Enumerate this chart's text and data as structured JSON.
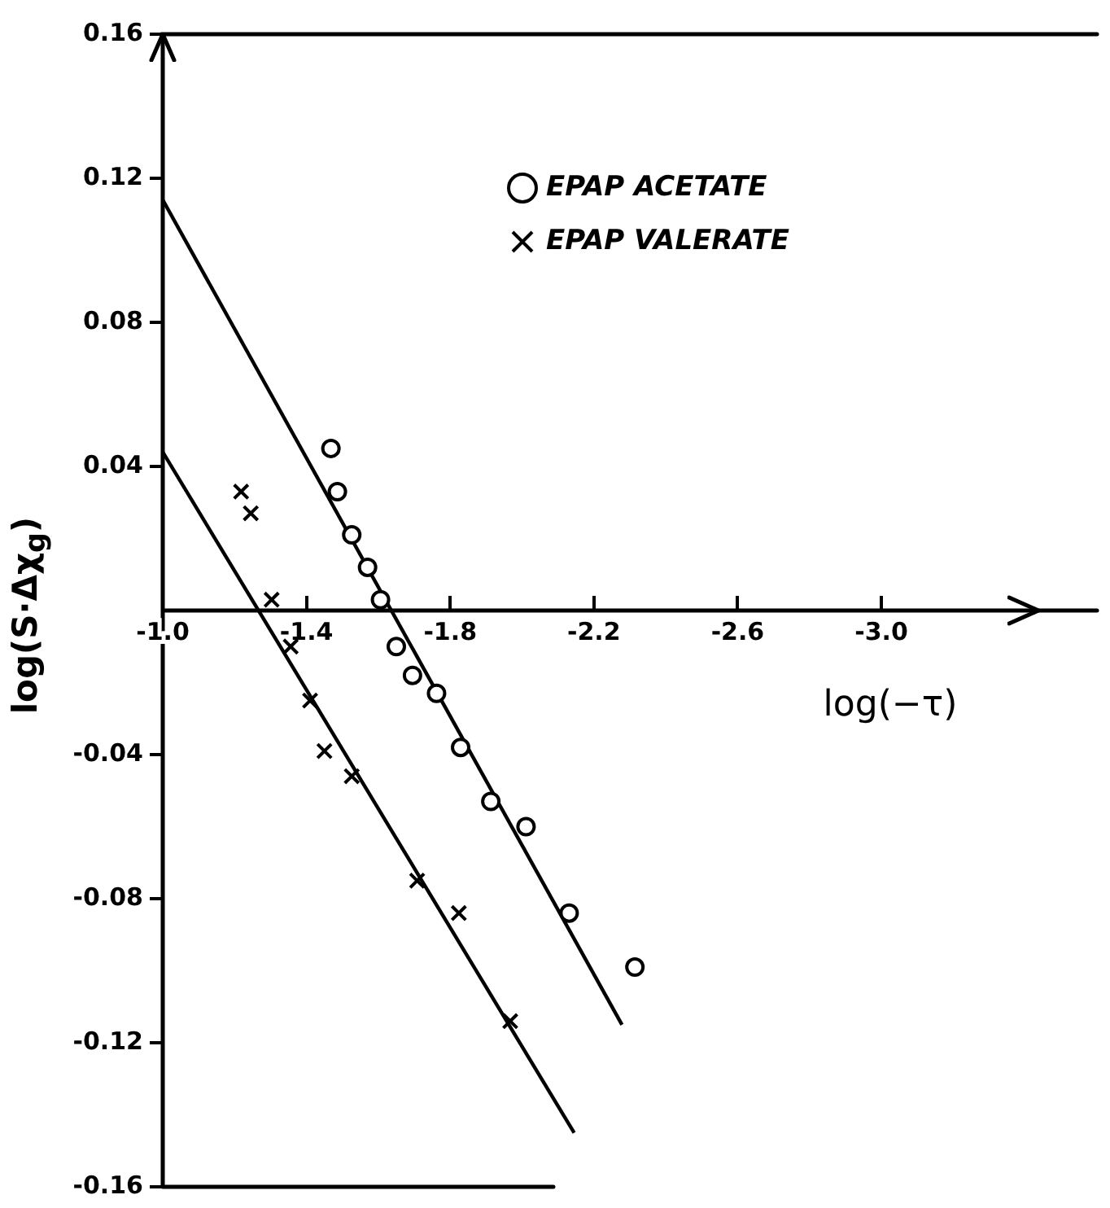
{
  "chart_data": {
    "type": "scatter",
    "xlabel": "log(−τ)",
    "ylabel": "log(S·Δχ$_{g}$)",
    "xlim": [
      -1.0,
      -3.6
    ],
    "ylim": [
      -0.16,
      0.16
    ],
    "xticks": [
      {
        "value": -1.0,
        "label": "-1.0"
      },
      -1.4,
      -1.8,
      -2.2,
      -2.6,
      {
        "value": -3.0,
        "label": "-3.0"
      }
    ],
    "yticks": [
      -0.16,
      -0.12,
      -0.08,
      -0.04,
      0.04,
      0.08,
      0.12,
      0.16
    ],
    "grid": false,
    "legend": "top right",
    "series": [
      {
        "name": "EPAP ACETATE",
        "type": "scatter",
        "marker": "circle",
        "color": "#000000",
        "x": [
          -1.468,
          -1.486,
          -1.526,
          -1.57,
          -1.606,
          -1.65,
          -1.695,
          -1.762,
          -1.829,
          -1.913,
          -2.011,
          -2.131,
          -2.314
        ],
        "values": [
          0.045,
          0.033,
          0.021,
          0.012,
          0.003,
          -0.01,
          -0.018,
          -0.023,
          -0.038,
          -0.053,
          -0.06,
          -0.084,
          -0.099
        ]
      },
      {
        "name": "EPAP VALERATE",
        "type": "scatter",
        "marker": "cross",
        "color": "#000000",
        "x": [
          -1.218,
          -1.245,
          -1.303,
          -1.356,
          -1.41,
          -1.45,
          -1.526,
          -1.708,
          -1.824,
          -1.967
        ],
        "values": [
          0.033,
          0.027,
          0.003,
          -0.01,
          -0.025,
          -0.039,
          -0.046,
          -0.075,
          -0.084,
          -0.114
        ]
      },
      {
        "type": "line",
        "color": "#000000",
        "x": [
          -1.0,
          -2.278
        ],
        "values": [
          0.114,
          -0.115
        ]
      },
      {
        "type": "line",
        "color": "#000000",
        "x": [
          -1.0,
          -2.145
        ],
        "values": [
          0.044,
          -0.145
        ]
      }
    ]
  }
}
